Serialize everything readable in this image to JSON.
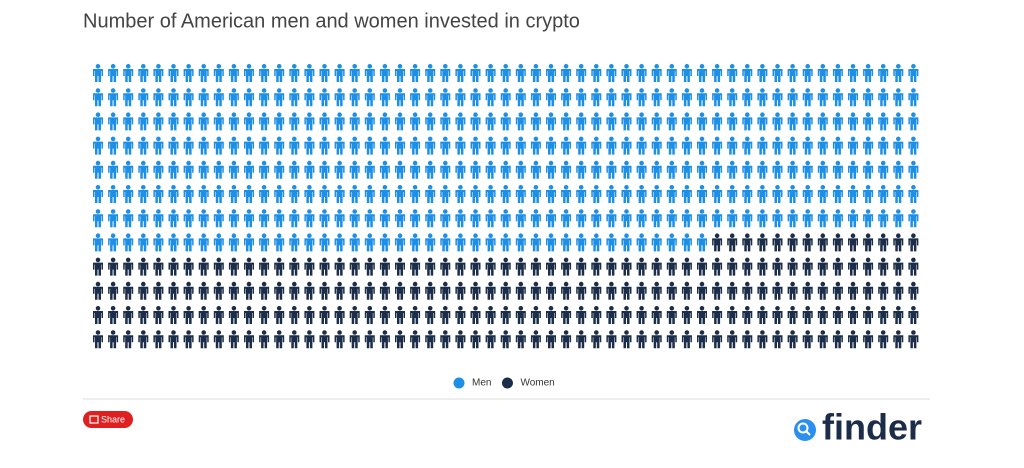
{
  "chart_data": {
    "type": "pictogram",
    "title": "Number of American men and women invested in crypto",
    "series": [
      {
        "name": "Men",
        "color": "#1e8fe6",
        "values": [
          426
        ]
      },
      {
        "name": "Women",
        "color": "#1b2d48",
        "values": [
          234
        ]
      }
    ],
    "legend": "bottom"
  },
  "share_label": "Share",
  "brand": "finder"
}
